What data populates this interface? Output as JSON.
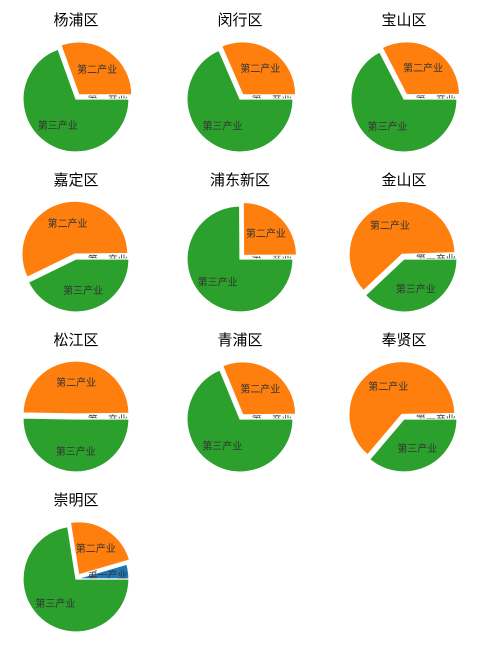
{
  "chart_data": {
    "type": "pie",
    "sectors": [
      "第一产业",
      "第二产业",
      "第三产业"
    ],
    "colors": [
      "#1f77b4",
      "#ff7f0e",
      "#2ca02c"
    ],
    "explode_first_fraction": true,
    "charts": [
      {
        "title": "杨浦区",
        "values": [
          0.0,
          30.5,
          69.5
        ]
      },
      {
        "title": "闵行区",
        "values": [
          0.0,
          31.5,
          68.5
        ]
      },
      {
        "title": "宝山区",
        "values": [
          0.1,
          32.5,
          67.4
        ]
      },
      {
        "title": "嘉定区",
        "values": [
          0.2,
          57.0,
          42.8
        ]
      },
      {
        "title": "浦东新区",
        "values": [
          0.1,
          25.0,
          74.9
        ]
      },
      {
        "title": "金山区",
        "values": [
          0.5,
          61.5,
          38.0
        ]
      },
      {
        "title": "松江区",
        "values": [
          0.2,
          49.5,
          50.3
        ]
      },
      {
        "title": "青浦区",
        "values": [
          0.2,
          31.0,
          68.8
        ]
      },
      {
        "title": "奉贤区",
        "values": [
          0.3,
          63.5,
          36.2
        ]
      },
      {
        "title": "崇明区",
        "values": [
          4.5,
          23.0,
          72.5
        ]
      }
    ]
  }
}
